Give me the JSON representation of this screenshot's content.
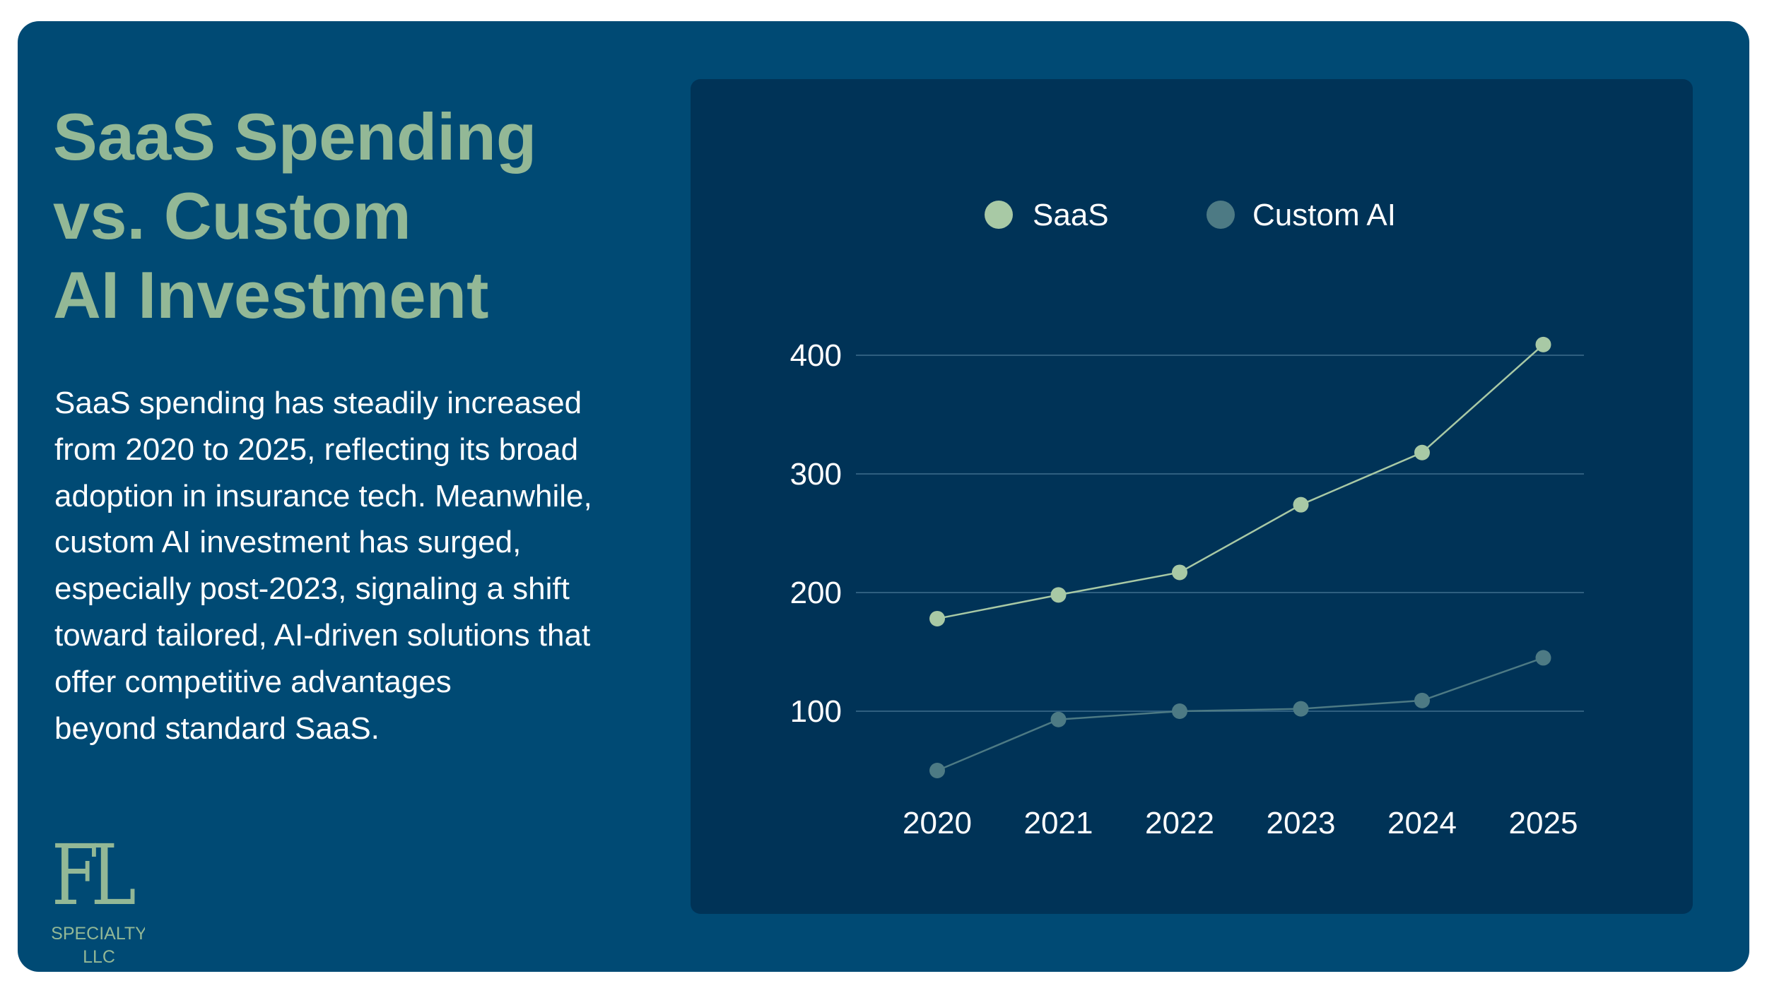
{
  "headline": "SaaS Spending\nvs. Custom\nAI Investment",
  "description": "SaaS spending has steadily increased\nfrom 2020 to 2025, reflecting its broad\nadoption in insurance tech. Meanwhile,\ncustom AI investment has surged,\nespecially post-2023, signaling a shift\ntoward tailored, AI-driven solutions that\noffer competitive advantages\nbeyond standard SaaS.",
  "logo": {
    "monogram": "FL",
    "line1": "SPECIALTY",
    "line2": "LLC"
  },
  "colors": {
    "background": "#004a74",
    "panel": "#003357",
    "accent": "#93b896",
    "saas": "#a8c9a5",
    "custom_ai": "#4d7a84",
    "gridline": "#2f5f80"
  },
  "chart_data": {
    "type": "line",
    "title": "",
    "xlabel": "",
    "ylabel": "",
    "categories": [
      "2020",
      "2021",
      "2022",
      "2023",
      "2024",
      "2025"
    ],
    "series": [
      {
        "name": "SaaS",
        "values": [
          178,
          198,
          217,
          274,
          318,
          409
        ]
      },
      {
        "name": "Custom AI",
        "values": [
          50,
          93,
          100,
          102,
          109,
          145
        ]
      }
    ],
    "y_ticks": [
      100,
      200,
      300,
      400
    ],
    "y_tick_labels": [
      "100",
      "200",
      "300",
      "400"
    ],
    "ylim": [
      0,
      400
    ],
    "grid": true,
    "legend_position": "top-center"
  }
}
